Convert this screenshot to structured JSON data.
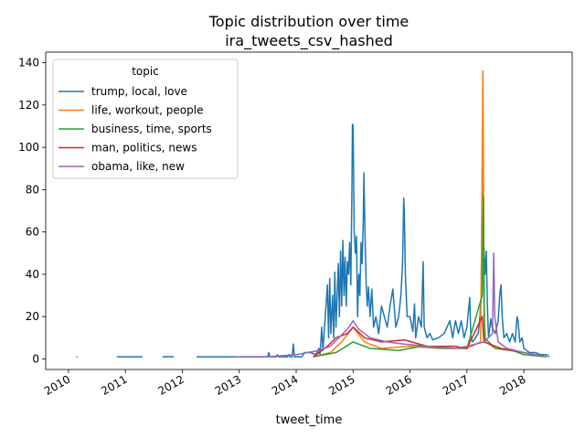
{
  "chart_data": {
    "type": "line",
    "title": "Topic distribution over time",
    "subtitle": "ira_tweets_csv_hashed",
    "xlabel": "tweet_time",
    "ylabel": "",
    "xlim": [
      2009.6,
      2018.85
    ],
    "ylim": [
      -5,
      145
    ],
    "x_ticks": [
      2010,
      2011,
      2012,
      2013,
      2014,
      2015,
      2016,
      2017,
      2018
    ],
    "x_tick_labels": [
      "2010",
      "2011",
      "2012",
      "2013",
      "2014",
      "2015",
      "2016",
      "2017",
      "2018"
    ],
    "y_ticks": [
      0,
      20,
      40,
      60,
      80,
      100,
      120,
      140
    ],
    "y_tick_labels": [
      "0",
      "20",
      "40",
      "60",
      "80",
      "100",
      "120",
      "140"
    ],
    "grid": false,
    "legend": {
      "title": "topic",
      "placement": "top-left"
    },
    "series": [
      {
        "name": "trump, local, love",
        "color": "#1f77b4",
        "segments": [
          [
            [
              2010.14,
              1
            ],
            [
              2010.16,
              1
            ]
          ],
          [
            [
              2010.85,
              1
            ],
            [
              2011.3,
              1
            ]
          ],
          [
            [
              2011.65,
              1
            ],
            [
              2011.85,
              1
            ]
          ],
          [
            [
              2012.25,
              1
            ],
            [
              2012.95,
              1
            ]
          ],
          [
            [
              2013.0,
              1
            ],
            [
              2013.5,
              1
            ],
            [
              2013.52,
              3
            ],
            [
              2013.54,
              1
            ],
            [
              2013.65,
              1
            ],
            [
              2013.67,
              2
            ],
            [
              2013.69,
              1
            ],
            [
              2013.85,
              1
            ],
            [
              2013.87,
              2
            ],
            [
              2013.89,
              1
            ],
            [
              2013.93,
              1
            ],
            [
              2013.95,
              7
            ],
            [
              2013.97,
              1
            ],
            [
              2014.1,
              1
            ],
            [
              2014.15,
              3
            ],
            [
              2014.25,
              3
            ],
            [
              2014.35,
              2
            ],
            [
              2014.4,
              5
            ],
            [
              2014.42,
              2
            ],
            [
              2014.45,
              15
            ],
            [
              2014.47,
              4
            ],
            [
              2014.55,
              35
            ],
            [
              2014.57,
              10
            ],
            [
              2014.59,
              38
            ],
            [
              2014.61,
              12
            ],
            [
              2014.64,
              30
            ],
            [
              2014.66,
              10
            ],
            [
              2014.68,
              41
            ],
            [
              2014.7,
              15
            ],
            [
              2014.74,
              45
            ],
            [
              2014.76,
              20
            ],
            [
              2014.78,
              51
            ],
            [
              2014.8,
              25
            ],
            [
              2014.82,
              56
            ],
            [
              2014.84,
              30
            ],
            [
              2014.86,
              48
            ],
            [
              2014.88,
              25
            ],
            [
              2014.9,
              46
            ],
            [
              2014.92,
              40
            ],
            [
              2014.94,
              55
            ],
            [
              2014.96,
              35
            ],
            [
              2014.98,
              80
            ],
            [
              2014.99,
              111
            ],
            [
              2015.0,
              110
            ],
            [
              2015.02,
              60
            ],
            [
              2015.04,
              50
            ],
            [
              2015.06,
              58
            ],
            [
              2015.08,
              20
            ],
            [
              2015.1,
              40
            ],
            [
              2015.12,
              30
            ],
            [
              2015.14,
              55
            ],
            [
              2015.16,
              45
            ],
            [
              2015.18,
              67
            ],
            [
              2015.19,
              88
            ],
            [
              2015.21,
              60
            ],
            [
              2015.23,
              35
            ],
            [
              2015.25,
              25
            ],
            [
              2015.27,
              34
            ],
            [
              2015.3,
              20
            ],
            [
              2015.33,
              33
            ],
            [
              2015.36,
              15
            ],
            [
              2015.4,
              20
            ],
            [
              2015.45,
              12
            ],
            [
              2015.5,
              25
            ],
            [
              2015.55,
              20
            ],
            [
              2015.6,
              15
            ],
            [
              2015.65,
              25
            ],
            [
              2015.7,
              33
            ],
            [
              2015.75,
              15
            ],
            [
              2015.8,
              20
            ],
            [
              2015.84,
              30
            ],
            [
              2015.87,
              45
            ],
            [
              2015.89,
              76
            ],
            [
              2015.9,
              70
            ],
            [
              2015.92,
              40
            ],
            [
              2015.95,
              20
            ],
            [
              2016.0,
              20
            ],
            [
              2016.05,
              13
            ],
            [
              2016.08,
              26
            ],
            [
              2016.1,
              10
            ],
            [
              2016.15,
              20
            ],
            [
              2016.2,
              15
            ],
            [
              2016.23,
              46
            ],
            [
              2016.25,
              15
            ],
            [
              2016.3,
              10
            ],
            [
              2016.35,
              12
            ],
            [
              2016.4,
              9
            ],
            [
              2016.5,
              10
            ],
            [
              2016.6,
              12
            ],
            [
              2016.7,
              18
            ],
            [
              2016.75,
              10
            ],
            [
              2016.8,
              18
            ],
            [
              2016.85,
              12
            ],
            [
              2016.9,
              18
            ],
            [
              2016.95,
              10
            ],
            [
              2017.0,
              15
            ],
            [
              2017.05,
              29
            ],
            [
              2017.07,
              10
            ],
            [
              2017.1,
              8
            ],
            [
              2017.15,
              10
            ],
            [
              2017.2,
              12
            ],
            [
              2017.23,
              20
            ],
            [
              2017.25,
              30
            ],
            [
              2017.27,
              90
            ],
            [
              2017.28,
              65
            ],
            [
              2017.3,
              51
            ],
            [
              2017.32,
              40
            ],
            [
              2017.34,
              51
            ],
            [
              2017.36,
              25
            ],
            [
              2017.38,
              10
            ],
            [
              2017.42,
              19
            ],
            [
              2017.44,
              15
            ],
            [
              2017.5,
              12
            ],
            [
              2017.55,
              18
            ],
            [
              2017.58,
              31
            ],
            [
              2017.6,
              35
            ],
            [
              2017.62,
              20
            ],
            [
              2017.65,
              10
            ],
            [
              2017.7,
              12
            ],
            [
              2017.75,
              8
            ],
            [
              2017.8,
              12
            ],
            [
              2017.85,
              8
            ],
            [
              2017.88,
              20
            ],
            [
              2017.9,
              18
            ],
            [
              2017.93,
              8
            ],
            [
              2017.97,
              10
            ],
            [
              2018.0,
              5
            ],
            [
              2018.05,
              4
            ],
            [
              2018.1,
              3
            ],
            [
              2018.2,
              3
            ],
            [
              2018.3,
              2
            ],
            [
              2018.4,
              2
            ],
            [
              2018.45,
              1
            ]
          ]
        ]
      },
      {
        "name": "life, workout, people",
        "color": "#ff7f0e",
        "segments": [
          [
            [
              2014.3,
              1
            ],
            [
              2014.6,
              3
            ],
            [
              2014.8,
              8
            ],
            [
              2015.0,
              15
            ],
            [
              2015.2,
              8
            ],
            [
              2015.5,
              5
            ],
            [
              2016.0,
              6
            ],
            [
              2016.5,
              5
            ],
            [
              2017.0,
              5
            ],
            [
              2017.24,
              8
            ],
            [
              2017.26,
              60
            ],
            [
              2017.28,
              136
            ],
            [
              2017.29,
              90
            ],
            [
              2017.3,
              20
            ],
            [
              2017.33,
              8
            ],
            [
              2017.5,
              5
            ],
            [
              2018.0,
              3
            ],
            [
              2018.4,
              1
            ]
          ]
        ]
      },
      {
        "name": "business, time, sports",
        "color": "#2ca02c",
        "segments": [
          [
            [
              2014.3,
              1
            ],
            [
              2014.7,
              3
            ],
            [
              2015.0,
              8
            ],
            [
              2015.3,
              5
            ],
            [
              2015.8,
              4
            ],
            [
              2016.2,
              6
            ],
            [
              2016.6,
              5
            ],
            [
              2017.0,
              5
            ],
            [
              2017.27,
              30
            ],
            [
              2017.29,
              77
            ],
            [
              2017.31,
              10
            ],
            [
              2017.5,
              5
            ],
            [
              2017.8,
              4
            ],
            [
              2018.0,
              2
            ],
            [
              2018.4,
              1
            ]
          ]
        ]
      },
      {
        "name": "man, politics, news",
        "color": "#d62728",
        "segments": [
          [
            [
              2014.3,
              1
            ],
            [
              2014.55,
              6
            ],
            [
              2014.7,
              10
            ],
            [
              2014.9,
              12
            ],
            [
              2015.0,
              15
            ],
            [
              2015.2,
              10
            ],
            [
              2015.5,
              8
            ],
            [
              2015.9,
              9
            ],
            [
              2016.3,
              6
            ],
            [
              2016.8,
              6
            ],
            [
              2017.0,
              5
            ],
            [
              2017.27,
              20
            ],
            [
              2017.3,
              8
            ],
            [
              2017.6,
              5
            ],
            [
              2018.0,
              3
            ],
            [
              2018.4,
              1
            ]
          ]
        ]
      },
      {
        "name": "obama, like, new",
        "color": "#9467bd",
        "segments": [
          [
            [
              2012.9,
              1
            ],
            [
              2013.5,
              1
            ],
            [
              2014.0,
              2
            ],
            [
              2014.4,
              4
            ],
            [
              2014.6,
              6
            ],
            [
              2014.75,
              10
            ],
            [
              2014.9,
              14
            ],
            [
              2015.0,
              18
            ],
            [
              2015.1,
              14
            ],
            [
              2015.3,
              10
            ],
            [
              2015.6,
              8
            ],
            [
              2015.9,
              7
            ],
            [
              2016.3,
              6
            ],
            [
              2016.8,
              5
            ],
            [
              2017.0,
              6
            ],
            [
              2017.3,
              8
            ],
            [
              2017.45,
              12
            ],
            [
              2017.47,
              50
            ],
            [
              2017.49,
              20
            ],
            [
              2017.55,
              8
            ],
            [
              2017.7,
              5
            ],
            [
              2018.0,
              3
            ],
            [
              2018.4,
              1
            ]
          ]
        ]
      }
    ]
  }
}
